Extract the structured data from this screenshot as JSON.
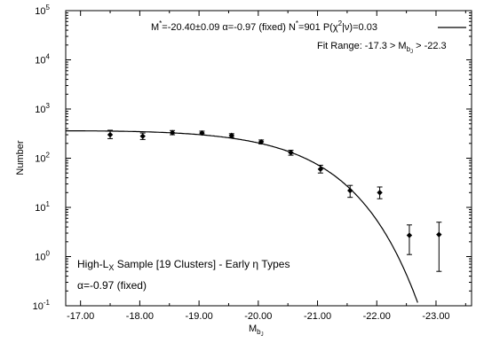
{
  "chart_data": {
    "type": "scatter",
    "xlabel_main": "M",
    "xlabel_sub": "b",
    "xlabel_subsub": "J",
    "ylabel": "Number",
    "xlim": [
      -16.75,
      -23.6
    ],
    "ylog_range": [
      0.1,
      100000
    ],
    "x_ticks": [
      -17.0,
      -18.0,
      -19.0,
      -20.0,
      -21.0,
      -22.0,
      -23.0
    ],
    "x_tick_labels": [
      "-17.00",
      "-18.00",
      "-19.00",
      "-20.00",
      "-21.00",
      "-22.00",
      "-23.00"
    ],
    "y_ticks": [
      {
        "value": 0.1,
        "base": "10",
        "exp": "-1"
      },
      {
        "value": 1,
        "base": "10",
        "exp": "0"
      },
      {
        "value": 10,
        "base": "10",
        "exp": "1"
      },
      {
        "value": 100,
        "base": "10",
        "exp": "2"
      },
      {
        "value": 1000,
        "base": "10",
        "exp": "3"
      },
      {
        "value": 10000,
        "base": "10",
        "exp": "4"
      },
      {
        "value": 100000,
        "base": "10",
        "exp": "5"
      }
    ],
    "series": [
      {
        "points": [
          {
            "x": -17.5,
            "y": 300,
            "lo": 250,
            "hi": 370
          },
          {
            "x": -18.05,
            "y": 280,
            "lo": 240,
            "hi": 325
          },
          {
            "x": -18.55,
            "y": 330,
            "lo": 300,
            "hi": 365
          },
          {
            "x": -19.05,
            "y": 325,
            "lo": 300,
            "hi": 355
          },
          {
            "x": -19.55,
            "y": 290,
            "lo": 265,
            "hi": 315
          },
          {
            "x": -20.05,
            "y": 215,
            "lo": 195,
            "hi": 235
          },
          {
            "x": -20.55,
            "y": 130,
            "lo": 115,
            "hi": 145
          },
          {
            "x": -21.05,
            "y": 60,
            "lo": 50,
            "hi": 72
          },
          {
            "x": -21.55,
            "y": 22,
            "lo": 16,
            "hi": 28
          },
          {
            "x": -22.05,
            "y": 20,
            "lo": 15,
            "hi": 26
          },
          {
            "x": -22.55,
            "y": 2.7,
            "lo": 1.1,
            "hi": 4.4
          },
          {
            "x": -23.05,
            "y": 2.8,
            "lo": 0.5,
            "hi": 5.0
          }
        ]
      }
    ],
    "fit": {
      "Mstar": -20.4,
      "alpha": -0.97,
      "Nstar": 901,
      "phi_scale": 360
    },
    "annotations": {
      "top_a1": "M",
      "top_a1_sup": "*",
      "top_a2": "=-20.40±0.09   α=-0.97 (fixed)   N",
      "top_a2_sup": "*",
      "top_a3": "=901   P(χ",
      "top_a3_sup": "2",
      "top_a4": "|ν)=0.03",
      "fit_range_a": "Fit Range: -17.3 > M",
      "fit_range_sub": "b",
      "fit_range_subsub": "J",
      "fit_range_b": " > -22.3",
      "sample_a": "High-L",
      "sample_sub": "X",
      "sample_b": " Sample [19 Clusters] - Early η Types",
      "alpha_note": "α=-0.97 (fixed)"
    }
  }
}
